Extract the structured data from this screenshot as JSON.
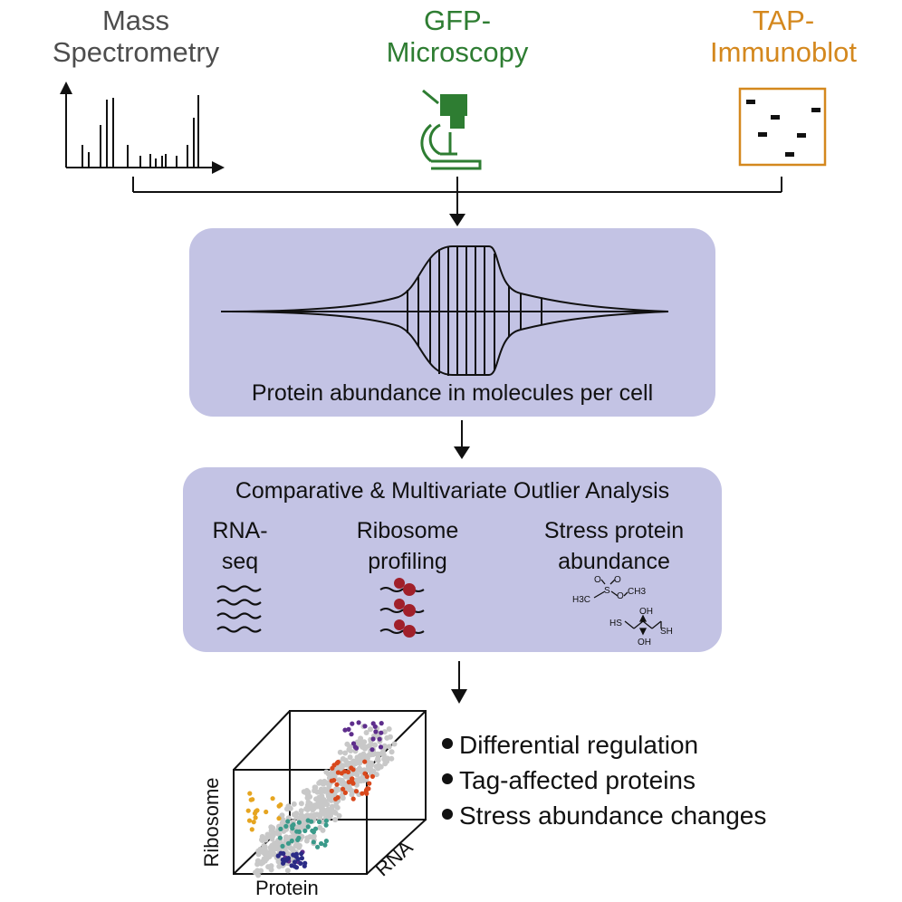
{
  "sources": {
    "mass_spec": {
      "line1": "Mass",
      "line2": "Spectrometry",
      "color": "#4d4d4d"
    },
    "gfp": {
      "line1": "GFP-",
      "line2": "Microscopy",
      "color": "#2e7d32"
    },
    "tap": {
      "line1": "TAP-",
      "line2": "Immunoblot",
      "color": "#d4881e"
    }
  },
  "abundance_box": {
    "label": "Protein abundance in molecules per cell",
    "fill": "#c3c3e4"
  },
  "analysis_box": {
    "title": "Comparative & Multivariate Outlier Analysis",
    "rnaseq": {
      "line1": "RNA-",
      "line2": "seq"
    },
    "ribosome": {
      "line1": "Ribosome",
      "line2": "profiling"
    },
    "stress": {
      "line1": "Stress protein",
      "line2": "abundance"
    },
    "chem": {
      "h3c": "H3C",
      "s": "S",
      "o": "O",
      "ch3": "CH3",
      "hs": "HS",
      "oh": "OH",
      "sh": "SH"
    }
  },
  "cube": {
    "x_label": "Protein",
    "y_label": "Ribosome",
    "z_label": "RNA"
  },
  "outcomes": [
    "Differential regulation",
    "Tag-affected proteins",
    "Stress abundance changes"
  ],
  "colors": {
    "gray": "#c8c8c8",
    "purple": "#5e2e8c",
    "orange": "#d9481c",
    "yellow": "#e6a520",
    "teal": "#3a9a8a",
    "navy": "#2b2b86",
    "dark_red": "#a0202a"
  }
}
